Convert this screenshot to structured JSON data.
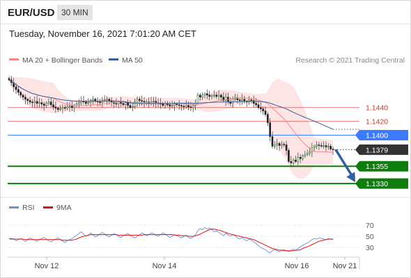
{
  "header": {
    "pair": "EUR/USD",
    "timeframe": "30 MIN",
    "datetime": "Tuesday, November 16, 2021 7:01:20 AM CET"
  },
  "legend": {
    "ma20": "MA 20 + Bollinger Bands",
    "ma50": "MA 50",
    "ma20_color": "#f08a8a",
    "ma50_color": "#3a5e9c"
  },
  "credit": "Research © 2021 Trading Central",
  "rsi_legend": {
    "rsi": "RSI",
    "ma9": "9MA",
    "rsi_color": "#6b8fd8",
    "ma9_color": "#dd1111"
  },
  "chart_data": {
    "type": "candlestick",
    "ylim": [
      1.1312,
      1.1495
    ],
    "levels": [
      {
        "label": "1.1440",
        "value": 1.144,
        "color": "#e87878",
        "style": "thin"
      },
      {
        "label": "1.1420",
        "value": 1.142,
        "color": "#e87878",
        "style": "thin"
      },
      {
        "label": "1.1400",
        "value": 1.14,
        "color": "#3b7bff",
        "style": "thin"
      },
      {
        "label": "1.1379",
        "value": 1.1379,
        "color": "#333333",
        "style": "dotted"
      },
      {
        "label": "1.1355",
        "value": 1.1355,
        "color": "#0e7d0e",
        "style": "thick"
      },
      {
        "label": "1.1330",
        "value": 1.133,
        "color": "#0e7d0e",
        "style": "thick"
      }
    ],
    "x_ticks": [
      "Nov 12",
      "Nov 14",
      "Nov 16",
      "Nov 21"
    ],
    "close": [
      1.148,
      1.1476,
      1.147,
      1.1466,
      1.1462,
      1.1458,
      1.1455,
      1.1452,
      1.145,
      1.1448,
      1.1447,
      1.1449,
      1.1446,
      1.1447,
      1.1445,
      1.1443,
      1.1446,
      1.1448,
      1.1444,
      1.1441,
      1.1439,
      1.1437,
      1.1438,
      1.144,
      1.1439,
      1.1441,
      1.1442,
      1.144,
      1.1443,
      1.1445,
      1.1447,
      1.1449,
      1.1448,
      1.1446,
      1.1447,
      1.145,
      1.1452,
      1.1449,
      1.1448,
      1.1447,
      1.145,
      1.1451,
      1.1452,
      1.145,
      1.1448,
      1.1446,
      1.1445,
      1.1448,
      1.1446,
      1.1444,
      1.1447,
      1.1443,
      1.144,
      1.1441,
      1.1448,
      1.1452,
      1.145,
      1.1449,
      1.1447,
      1.1448,
      1.1446,
      1.1448,
      1.1449,
      1.1447,
      1.1446,
      1.1445,
      1.1443,
      1.1446,
      1.1444,
      1.1442,
      1.1443,
      1.1445,
      1.1444,
      1.1443,
      1.1442,
      1.1441,
      1.1443,
      1.1441,
      1.144,
      1.1443,
      1.1446,
      1.1458,
      1.1455,
      1.1458,
      1.146,
      1.1458,
      1.1456,
      1.1457,
      1.1458,
      1.1456,
      1.1458,
      1.1455,
      1.145,
      1.1455,
      1.1448,
      1.1446,
      1.1452,
      1.1454,
      1.1451,
      1.145,
      1.1452,
      1.1449,
      1.1448,
      1.1451,
      1.145,
      1.1446,
      1.1444,
      1.144,
      1.1438,
      1.1435,
      1.143,
      1.1418,
      1.1398,
      1.1384,
      1.1386,
      1.1388,
      1.1385,
      1.1387,
      1.1386,
      1.1378,
      1.1362,
      1.136,
      1.1364,
      1.1362,
      1.1368,
      1.1366,
      1.137,
      1.1372,
      1.1374,
      1.1376,
      1.1382,
      1.1384,
      1.1386,
      1.1385,
      1.1384,
      1.1385,
      1.1383,
      1.1384,
      1.138,
      1.1379
    ],
    "forecast": {
      "from": 1.1379,
      "to": 1.1332
    },
    "rsi": {
      "ticks": [
        "70",
        "50",
        "30"
      ],
      "ylim": [
        15,
        85
      ],
      "values": [
        46,
        44,
        45,
        42,
        44,
        46,
        43,
        41,
        44,
        47,
        45,
        43,
        41,
        44,
        46,
        48,
        45,
        42,
        40,
        43,
        45,
        47,
        44,
        41,
        39,
        42,
        44,
        46,
        49,
        52,
        55,
        58,
        54,
        50,
        52,
        56,
        53,
        49,
        51,
        54,
        57,
        54,
        51,
        49,
        52,
        55,
        53,
        50,
        48,
        51,
        53,
        55,
        52,
        49,
        47,
        50,
        53,
        56,
        54,
        51,
        53,
        56,
        55,
        52,
        50,
        53,
        56,
        54,
        51,
        48,
        50,
        53,
        51,
        49,
        47,
        50,
        52,
        48,
        46,
        49,
        53,
        60,
        64,
        62,
        66,
        63,
        65,
        62,
        58,
        60,
        57,
        54,
        51,
        55,
        52,
        50,
        53,
        51,
        47,
        45,
        48,
        44,
        42,
        45,
        43,
        40,
        37,
        33,
        30,
        28,
        26,
        22,
        20,
        24,
        26,
        24,
        22,
        25,
        26,
        24,
        22,
        24,
        27,
        25,
        28,
        31,
        34,
        36,
        38,
        41,
        44,
        46,
        45,
        47,
        46,
        45,
        44,
        46,
        45,
        44
      ],
      "ma9": [
        46,
        46,
        45,
        45,
        45,
        45,
        45,
        44,
        44,
        44,
        44,
        44,
        44,
        44,
        44,
        44,
        44,
        44,
        44,
        44,
        44,
        44,
        44,
        43,
        43,
        43,
        43,
        43,
        44,
        45,
        47,
        49,
        50,
        51,
        52,
        53,
        53,
        53,
        53,
        53,
        53,
        53,
        53,
        53,
        53,
        53,
        53,
        52,
        52,
        52,
        52,
        52,
        52,
        52,
        52,
        52,
        52,
        52,
        53,
        53,
        53,
        53,
        53,
        53,
        53,
        53,
        53,
        53,
        53,
        53,
        53,
        52,
        52,
        52,
        51,
        51,
        51,
        50,
        50,
        50,
        51,
        52,
        54,
        56,
        58,
        60,
        62,
        63,
        63,
        62,
        61,
        60,
        58,
        57,
        55,
        54,
        53,
        52,
        51,
        50,
        49,
        48,
        47,
        46,
        45,
        44,
        42,
        40,
        38,
        36,
        34,
        32,
        30,
        28,
        27,
        26,
        25,
        25,
        24,
        24,
        24,
        24,
        24,
        25,
        25,
        26,
        28,
        30,
        31,
        33,
        35,
        37,
        39,
        41,
        42,
        43,
        44,
        45,
        45,
        45
      ]
    }
  }
}
